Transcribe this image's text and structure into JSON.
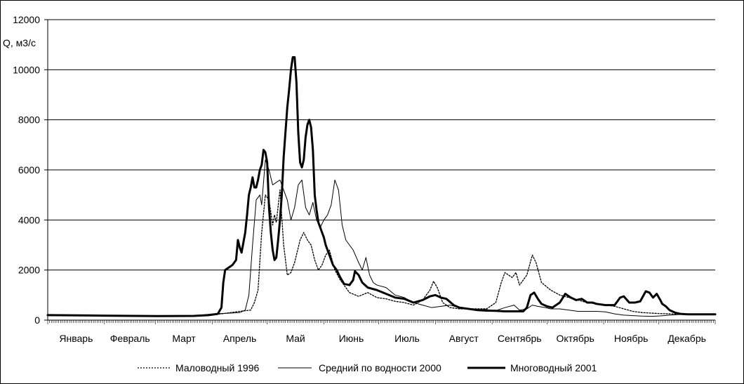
{
  "chart_data": {
    "type": "line",
    "ylabel": "Q, м3/с",
    "ylim": [
      0,
      12000
    ],
    "yticks": [
      0,
      2000,
      4000,
      6000,
      8000,
      10000,
      12000
    ],
    "xlim": [
      0,
      365
    ],
    "month_labels": [
      "Январь",
      "Февраль",
      "Март",
      "Апрель",
      "Май",
      "Июнь",
      "Июль",
      "Август",
      "Сентябрь",
      "Октябрь",
      "Ноябрь",
      "Декабрь"
    ],
    "grid": "horizontal",
    "legend_position": "bottom",
    "series": [
      {
        "name": "Маловодный 1996",
        "style": "dotted",
        "color": "#000000",
        "points": [
          [
            0,
            200
          ],
          [
            30,
            180
          ],
          [
            60,
            160
          ],
          [
            80,
            170
          ],
          [
            95,
            250
          ],
          [
            105,
            350
          ],
          [
            111,
            400
          ],
          [
            113,
            700
          ],
          [
            115,
            1200
          ],
          [
            117,
            3500
          ],
          [
            119,
            5000
          ],
          [
            121,
            4800
          ],
          [
            123,
            3800
          ],
          [
            124,
            4200
          ],
          [
            125,
            3900
          ],
          [
            127,
            5200
          ],
          [
            129,
            3000
          ],
          [
            131,
            1800
          ],
          [
            133,
            1900
          ],
          [
            135,
            2300
          ],
          [
            138,
            3200
          ],
          [
            140,
            3500
          ],
          [
            142,
            3200
          ],
          [
            144,
            3000
          ],
          [
            146,
            2400
          ],
          [
            148,
            2000
          ],
          [
            150,
            2200
          ],
          [
            152,
            2600
          ],
          [
            154,
            2800
          ],
          [
            157,
            2000
          ],
          [
            160,
            1600
          ],
          [
            165,
            1100
          ],
          [
            170,
            950
          ],
          [
            175,
            1100
          ],
          [
            180,
            900
          ],
          [
            185,
            850
          ],
          [
            190,
            750
          ],
          [
            195,
            700
          ],
          [
            200,
            600
          ],
          [
            205,
            800
          ],
          [
            209,
            1200
          ],
          [
            211,
            1550
          ],
          [
            213,
            1300
          ],
          [
            216,
            700
          ],
          [
            220,
            500
          ],
          [
            225,
            450
          ],
          [
            230,
            450
          ],
          [
            235,
            450
          ],
          [
            240,
            450
          ],
          [
            245,
            700
          ],
          [
            248,
            1500
          ],
          [
            250,
            1900
          ],
          [
            252,
            1800
          ],
          [
            254,
            1700
          ],
          [
            256,
            1900
          ],
          [
            258,
            1400
          ],
          [
            260,
            1600
          ],
          [
            262,
            1800
          ],
          [
            265,
            2600
          ],
          [
            267,
            2300
          ],
          [
            270,
            1500
          ],
          [
            275,
            1200
          ],
          [
            280,
            1000
          ],
          [
            285,
            900
          ],
          [
            290,
            800
          ],
          [
            295,
            700
          ],
          [
            300,
            650
          ],
          [
            305,
            600
          ],
          [
            310,
            550
          ],
          [
            315,
            450
          ],
          [
            320,
            350
          ],
          [
            325,
            300
          ],
          [
            330,
            280
          ],
          [
            335,
            260
          ],
          [
            340,
            250
          ],
          [
            345,
            240
          ],
          [
            350,
            230
          ],
          [
            355,
            220
          ],
          [
            365,
            220
          ]
        ]
      },
      {
        "name": "Средний по водности 2000",
        "style": "thin",
        "color": "#000000",
        "points": [
          [
            0,
            200
          ],
          [
            30,
            180
          ],
          [
            60,
            160
          ],
          [
            80,
            170
          ],
          [
            90,
            250
          ],
          [
            100,
            280
          ],
          [
            105,
            300
          ],
          [
            108,
            400
          ],
          [
            110,
            1000
          ],
          [
            112,
            3000
          ],
          [
            114,
            4800
          ],
          [
            116,
            5000
          ],
          [
            117,
            4600
          ],
          [
            119,
            6400
          ],
          [
            121,
            6000
          ],
          [
            123,
            5400
          ],
          [
            125,
            5500
          ],
          [
            127,
            5600
          ],
          [
            129,
            5200
          ],
          [
            131,
            4800
          ],
          [
            133,
            4000
          ],
          [
            135,
            4500
          ],
          [
            137,
            5400
          ],
          [
            139,
            5600
          ],
          [
            141,
            4500
          ],
          [
            143,
            4200
          ],
          [
            145,
            4700
          ],
          [
            147,
            4000
          ],
          [
            149,
            3700
          ],
          [
            151,
            4000
          ],
          [
            153,
            4200
          ],
          [
            155,
            4600
          ],
          [
            157,
            5600
          ],
          [
            159,
            5200
          ],
          [
            161,
            3800
          ],
          [
            163,
            3200
          ],
          [
            165,
            3000
          ],
          [
            167,
            2800
          ],
          [
            170,
            2300
          ],
          [
            172,
            2000
          ],
          [
            174,
            2500
          ],
          [
            176,
            1800
          ],
          [
            178,
            1500
          ],
          [
            180,
            1400
          ],
          [
            185,
            1300
          ],
          [
            190,
            1000
          ],
          [
            195,
            900
          ],
          [
            200,
            700
          ],
          [
            205,
            600
          ],
          [
            210,
            500
          ],
          [
            215,
            550
          ],
          [
            220,
            600
          ],
          [
            225,
            500
          ],
          [
            230,
            450
          ],
          [
            235,
            420
          ],
          [
            240,
            420
          ],
          [
            245,
            380
          ],
          [
            250,
            500
          ],
          [
            255,
            600
          ],
          [
            258,
            400
          ],
          [
            262,
            450
          ],
          [
            265,
            600
          ],
          [
            268,
            550
          ],
          [
            272,
            500
          ],
          [
            275,
            450
          ],
          [
            280,
            450
          ],
          [
            285,
            400
          ],
          [
            290,
            350
          ],
          [
            295,
            350
          ],
          [
            300,
            350
          ],
          [
            305,
            330
          ],
          [
            310,
            250
          ],
          [
            315,
            200
          ],
          [
            320,
            180
          ],
          [
            325,
            160
          ],
          [
            330,
            150
          ],
          [
            335,
            170
          ],
          [
            340,
            200
          ],
          [
            345,
            220
          ],
          [
            350,
            230
          ],
          [
            355,
            240
          ],
          [
            365,
            240
          ]
        ]
      },
      {
        "name": "Многоводный 2001",
        "style": "thick",
        "color": "#000000",
        "points": [
          [
            0,
            200
          ],
          [
            30,
            180
          ],
          [
            60,
            160
          ],
          [
            80,
            170
          ],
          [
            88,
            200
          ],
          [
            93,
            250
          ],
          [
            95,
            500
          ],
          [
            96,
            1500
          ],
          [
            97,
            2000
          ],
          [
            99,
            2100
          ],
          [
            101,
            2200
          ],
          [
            103,
            2400
          ],
          [
            104,
            3200
          ],
          [
            105,
            2900
          ],
          [
            106,
            2700
          ],
          [
            107,
            3100
          ],
          [
            108,
            3500
          ],
          [
            109,
            4200
          ],
          [
            110,
            5000
          ],
          [
            111,
            5300
          ],
          [
            112,
            5700
          ],
          [
            113,
            5300
          ],
          [
            114,
            5300
          ],
          [
            115,
            5600
          ],
          [
            116,
            6000
          ],
          [
            117,
            6200
          ],
          [
            118,
            6800
          ],
          [
            119,
            6700
          ],
          [
            120,
            6300
          ],
          [
            121,
            4500
          ],
          [
            122,
            3500
          ],
          [
            123,
            2800
          ],
          [
            124,
            2400
          ],
          [
            125,
            2500
          ],
          [
            126,
            3200
          ],
          [
            127,
            4000
          ],
          [
            128,
            5000
          ],
          [
            129,
            6500
          ],
          [
            130,
            7500
          ],
          [
            131,
            8500
          ],
          [
            132,
            9200
          ],
          [
            133,
            10000
          ],
          [
            134,
            10500
          ],
          [
            135,
            10500
          ],
          [
            136,
            9500
          ],
          [
            137,
            7500
          ],
          [
            138,
            6300
          ],
          [
            139,
            6100
          ],
          [
            140,
            6400
          ],
          [
            141,
            7300
          ],
          [
            142,
            7800
          ],
          [
            143,
            8000
          ],
          [
            144,
            7700
          ],
          [
            145,
            6800
          ],
          [
            146,
            5000
          ],
          [
            147,
            4400
          ],
          [
            148,
            3900
          ],
          [
            149,
            3700
          ],
          [
            150,
            3500
          ],
          [
            151,
            3300
          ],
          [
            152,
            3000
          ],
          [
            153,
            2800
          ],
          [
            154,
            2600
          ],
          [
            155,
            2400
          ],
          [
            156,
            2200
          ],
          [
            158,
            2000
          ],
          [
            160,
            1700
          ],
          [
            162,
            1450
          ],
          [
            165,
            1400
          ],
          [
            167,
            1600
          ],
          [
            168,
            1950
          ],
          [
            170,
            1800
          ],
          [
            172,
            1500
          ],
          [
            175,
            1300
          ],
          [
            180,
            1200
          ],
          [
            185,
            1050
          ],
          [
            190,
            900
          ],
          [
            195,
            850
          ],
          [
            200,
            700
          ],
          [
            205,
            800
          ],
          [
            209,
            950
          ],
          [
            212,
            1000
          ],
          [
            215,
            900
          ],
          [
            218,
            850
          ],
          [
            222,
            600
          ],
          [
            225,
            500
          ],
          [
            230,
            450
          ],
          [
            235,
            400
          ],
          [
            240,
            380
          ],
          [
            245,
            370
          ],
          [
            250,
            350
          ],
          [
            255,
            350
          ],
          [
            260,
            350
          ],
          [
            262,
            500
          ],
          [
            264,
            1000
          ],
          [
            266,
            1100
          ],
          [
            268,
            850
          ],
          [
            270,
            650
          ],
          [
            273,
            550
          ],
          [
            276,
            500
          ],
          [
            280,
            700
          ],
          [
            283,
            1050
          ],
          [
            286,
            900
          ],
          [
            289,
            800
          ],
          [
            292,
            850
          ],
          [
            295,
            700
          ],
          [
            298,
            700
          ],
          [
            300,
            650
          ],
          [
            305,
            600
          ],
          [
            310,
            600
          ],
          [
            313,
            900
          ],
          [
            315,
            950
          ],
          [
            318,
            700
          ],
          [
            321,
            700
          ],
          [
            324,
            750
          ],
          [
            327,
            1150
          ],
          [
            329,
            1100
          ],
          [
            331,
            900
          ],
          [
            333,
            1050
          ],
          [
            335,
            800
          ],
          [
            336,
            650
          ],
          [
            338,
            550
          ],
          [
            340,
            400
          ],
          [
            343,
            300
          ],
          [
            346,
            250
          ],
          [
            350,
            230
          ],
          [
            355,
            230
          ],
          [
            365,
            230
          ]
        ]
      }
    ]
  }
}
